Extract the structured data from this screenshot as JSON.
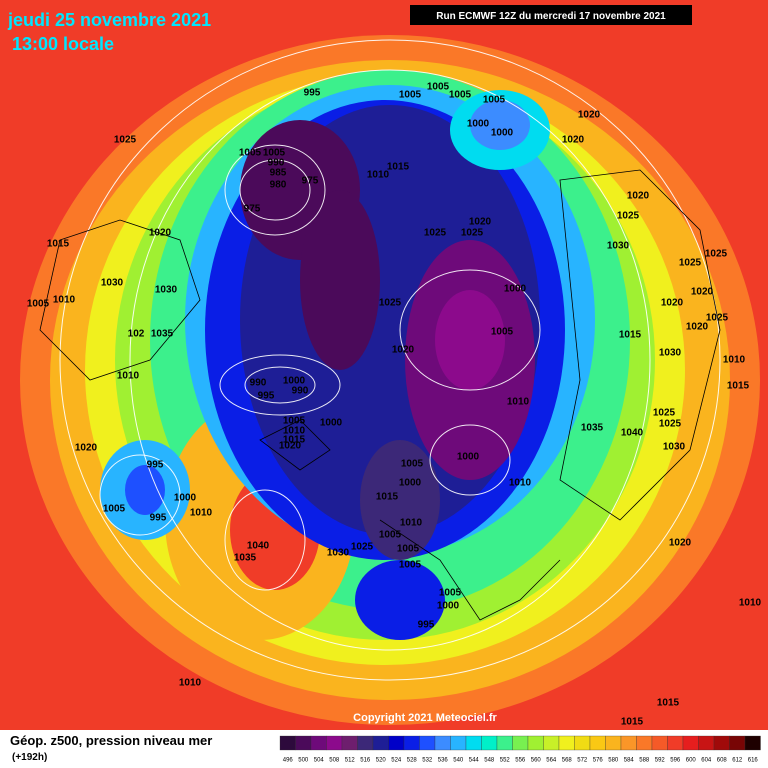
{
  "header": {
    "title": "jeudi 25 novembre 2021",
    "subtitle": "13:00 locale",
    "run": "Run ECMWF 12Z du mercredi 17 novembre 2021"
  },
  "copyright": "Copyright 2021 Meteociel.fr",
  "footer": {
    "label": "Géop. z500, pression niveau mer",
    "lead": "(+192h)"
  },
  "legend": {
    "items": [
      {
        "value": 496,
        "color": "#2d0a3c"
      },
      {
        "value": 500,
        "color": "#4b0a5a"
      },
      {
        "value": 504,
        "color": "#6e0a7a"
      },
      {
        "value": 508,
        "color": "#8c0a8c"
      },
      {
        "value": 512,
        "color": "#6e1e6e"
      },
      {
        "value": 516,
        "color": "#3c2878"
      },
      {
        "value": 520,
        "color": "#1e1e96"
      },
      {
        "value": 524,
        "color": "#0000c8"
      },
      {
        "value": 528,
        "color": "#0a1ee6"
      },
      {
        "value": 532,
        "color": "#1e50ff"
      },
      {
        "value": 536,
        "color": "#3c8cff"
      },
      {
        "value": 540,
        "color": "#28b4ff"
      },
      {
        "value": 544,
        "color": "#00dcf0"
      },
      {
        "value": 548,
        "color": "#00f0c8"
      },
      {
        "value": 552,
        "color": "#3cf08c"
      },
      {
        "value": 556,
        "color": "#78f050"
      },
      {
        "value": 560,
        "color": "#a0f032"
      },
      {
        "value": 564,
        "color": "#c8f028"
      },
      {
        "value": 568,
        "color": "#f0f01e"
      },
      {
        "value": 572,
        "color": "#f0dc14"
      },
      {
        "value": 576,
        "color": "#fac814"
      },
      {
        "value": 580,
        "color": "#fab41e"
      },
      {
        "value": 584,
        "color": "#fa9628"
      },
      {
        "value": 588,
        "color": "#fa7828"
      },
      {
        "value": 592,
        "color": "#f55a28"
      },
      {
        "value": 596,
        "color": "#f03c28"
      },
      {
        "value": 600,
        "color": "#e61e1e"
      },
      {
        "value": 604,
        "color": "#c81414"
      },
      {
        "value": 608,
        "color": "#a00a0a"
      },
      {
        "value": 612,
        "color": "#780505"
      },
      {
        "value": 616,
        "color": "#1e0000"
      }
    ]
  },
  "pressure_labels": [
    "995",
    "1005",
    "1005",
    "1005",
    "1005",
    "1000",
    "1000",
    "1020",
    "1020",
    "1025",
    "1005",
    "1005",
    "990",
    "985",
    "980",
    "975",
    "975",
    "1015",
    "1010",
    "1020",
    "1025",
    "1020",
    "1025",
    "1025",
    "1020",
    "1015",
    "1030",
    "1025",
    "1025",
    "1030",
    "1030",
    "1000",
    "1005",
    "1010",
    "1025",
    "1020",
    "1020",
    "1025",
    "1020",
    "102",
    "1035",
    "1005",
    "1015",
    "1020",
    "1030",
    "1010",
    "1010",
    "990",
    "1000",
    "990",
    "995",
    "1015",
    "1010",
    "1005",
    "1000",
    "1010",
    "1015",
    "1020",
    "1035",
    "1040",
    "1025",
    "1025",
    "1030",
    "1020",
    "995",
    "1000",
    "1005",
    "1000",
    "1010",
    "1015",
    "1000",
    "1005",
    "995",
    "1010",
    "1010",
    "1005",
    "1025",
    "1005",
    "1040",
    "1030",
    "1035",
    "1005",
    "1020",
    "1005",
    "1000",
    "995",
    "1010",
    "1010",
    "1015",
    "1015"
  ]
}
